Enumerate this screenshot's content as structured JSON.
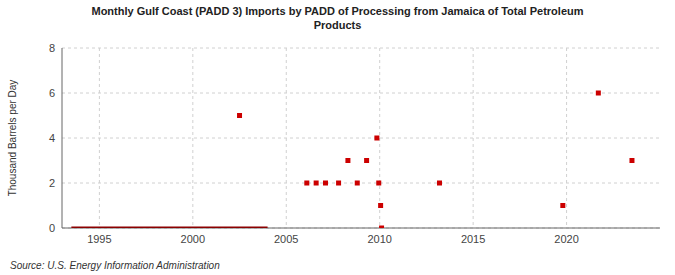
{
  "chart_data": {
    "type": "scatter",
    "title": "Monthly Gulf Coast (PADD 3) Imports by PADD of Processing from Jamaica of Total Petroleum\nProducts",
    "y_label": "Thousand Barrels per Day",
    "source": "Source: U.S. Energy Information Administration",
    "xlim": [
      1993,
      2025
    ],
    "ylim": [
      0,
      8
    ],
    "xticks": [
      1995,
      2000,
      2005,
      2010,
      2015,
      2020
    ],
    "yticks": [
      0,
      2,
      4,
      6,
      8
    ],
    "grid": true,
    "series": [
      {
        "type": "line",
        "color": "#8b0000",
        "x": [
          1993.5,
          2004.0
        ],
        "values": [
          0,
          0
        ]
      },
      {
        "type": "scatter",
        "color": "#cc0000",
        "marker": "square",
        "x": [
          2002.5,
          2006.1,
          2006.6,
          2007.1,
          2007.8,
          2008.3,
          2008.8,
          2009.3,
          2009.85,
          2009.95,
          2010.05,
          2010.1,
          2013.2,
          2019.8,
          2021.7,
          2023.5
        ],
        "values": [
          5.0,
          2.0,
          2.0,
          2.0,
          2.0,
          3.0,
          2.0,
          3.0,
          4.0,
          2.0,
          1.0,
          0.0,
          2.0,
          1.0,
          6.0,
          3.0
        ]
      }
    ]
  }
}
